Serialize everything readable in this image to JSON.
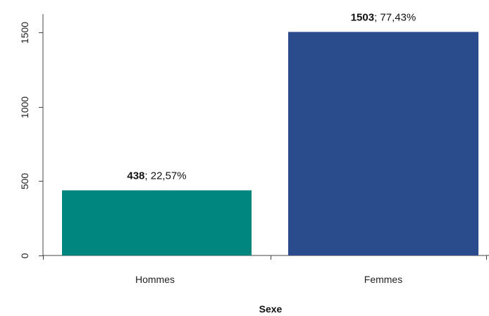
{
  "chart_data": {
    "type": "bar",
    "categories": [
      "Hommes",
      "Femmes"
    ],
    "values": [
      438,
      1503
    ],
    "data_labels": [
      {
        "count": "438",
        "sep": "; ",
        "pct": "22,57%"
      },
      {
        "count": "1503",
        "sep": "; ",
        "pct": "77,43%"
      }
    ],
    "bar_colors": [
      "#00857f",
      "#2b4c8c"
    ],
    "xlabel": "Sexe",
    "ylabel": "",
    "yticks": [
      0,
      500,
      1000,
      1500
    ],
    "ylim": [
      0,
      1500
    ],
    "grid": false,
    "legend": "none"
  }
}
